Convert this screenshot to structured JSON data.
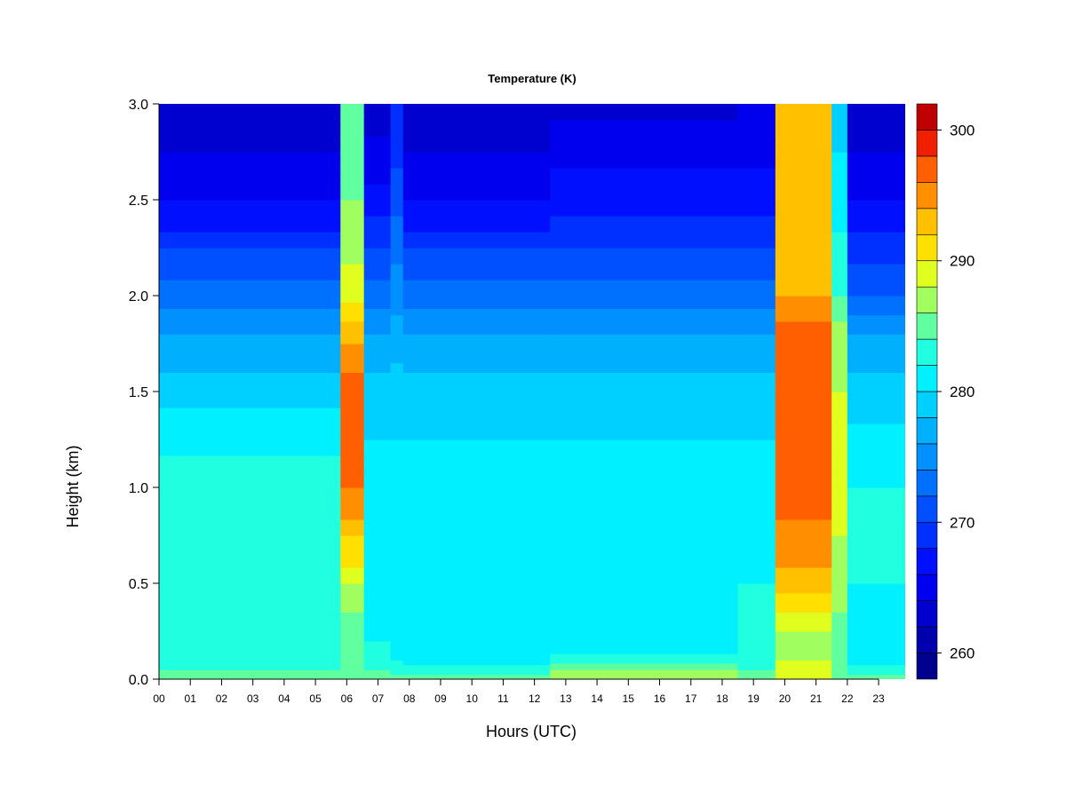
{
  "chart_data": {
    "type": "heatmap",
    "title": "Temperature (K)",
    "xlabel": "Hours (UTC)",
    "ylabel": "Height (km)",
    "xlim": [
      0,
      23.85
    ],
    "ylim": [
      0,
      3.0
    ],
    "x_ticks": [
      {
        "value": 0,
        "label": "00"
      },
      {
        "value": 1,
        "label": "01"
      },
      {
        "value": 2,
        "label": "02"
      },
      {
        "value": 3,
        "label": "03"
      },
      {
        "value": 4,
        "label": "04"
      },
      {
        "value": 5,
        "label": "05"
      },
      {
        "value": 6,
        "label": "06"
      },
      {
        "value": 7,
        "label": "07"
      },
      {
        "value": 8,
        "label": "08"
      },
      {
        "value": 9,
        "label": "09"
      },
      {
        "value": 10,
        "label": "10"
      },
      {
        "value": 11,
        "label": "11"
      },
      {
        "value": 12,
        "label": "12"
      },
      {
        "value": 13,
        "label": "13"
      },
      {
        "value": 14,
        "label": "14"
      },
      {
        "value": 15,
        "label": "15"
      },
      {
        "value": 16,
        "label": "16"
      },
      {
        "value": 17,
        "label": "17"
      },
      {
        "value": 18,
        "label": "18"
      },
      {
        "value": 19,
        "label": "19"
      },
      {
        "value": 20,
        "label": "20"
      },
      {
        "value": 21,
        "label": "21"
      },
      {
        "value": 22,
        "label": "22"
      },
      {
        "value": 23,
        "label": "23"
      }
    ],
    "y_ticks": [
      {
        "value": 0.0,
        "label": "0.0"
      },
      {
        "value": 0.5,
        "label": "0.5"
      },
      {
        "value": 1.0,
        "label": "1.0"
      },
      {
        "value": 1.5,
        "label": "1.5"
      },
      {
        "value": 2.0,
        "label": "2.0"
      },
      {
        "value": 2.5,
        "label": "2.5"
      },
      {
        "value": 3.0,
        "label": "3.0"
      }
    ],
    "colorbar": {
      "range": [
        258,
        302
      ],
      "ticks": [
        {
          "value": 260,
          "label": "260"
        },
        {
          "value": 270,
          "label": "270"
        },
        {
          "value": 280,
          "label": "280"
        },
        {
          "value": 290,
          "label": "290"
        },
        {
          "value": 300,
          "label": "300"
        }
      ],
      "levels": [
        258,
        260,
        262,
        264,
        266,
        268,
        270,
        272,
        274,
        276,
        278,
        280,
        282,
        284,
        286,
        288,
        290,
        292,
        294,
        296,
        298,
        300,
        302
      ],
      "colors": [
        "#00008F",
        "#0000AF",
        "#0000CF",
        "#0000EF",
        "#0010FF",
        "#0030FF",
        "#0050FF",
        "#0070FF",
        "#0090FF",
        "#00B0FF",
        "#00D0FF",
        "#00F0FF",
        "#20FFDF",
        "#60FF9F",
        "#A0FF5F",
        "#E0FF1F",
        "#FFE000",
        "#FFC000",
        "#FF8F00",
        "#FF5F00",
        "#EF1F00",
        "#BF0000",
        "#8F0000"
      ]
    },
    "grid": false,
    "z_profile": {
      "heights_km": [
        0.0,
        0.05,
        0.1,
        0.2,
        0.5,
        1.0,
        1.5,
        1.8,
        2.0,
        2.5,
        3.0
      ],
      "columns": [
        {
          "hours": [
            0.0,
            5.8
          ],
          "temps_K": [
            286,
            284,
            282,
            283,
            284,
            283,
            279,
            276,
            273,
            266,
            262
          ]
        },
        {
          "hours": [
            5.8,
            6.55
          ],
          "temps_K": [
            286,
            285,
            284,
            284,
            288,
            296,
            297,
            293,
            289,
            286,
            284
          ]
        },
        {
          "hours": [
            6.55,
            7.4
          ],
          "temps_K": [
            286,
            284,
            282,
            282,
            281,
            281,
            279,
            276,
            273,
            267,
            262
          ]
        },
        {
          "hours": [
            7.4,
            7.8
          ],
          "temps_K": [
            285,
            283,
            282,
            281,
            281,
            281,
            279,
            277,
            275,
            271,
            268
          ]
        },
        {
          "hours": [
            7.8,
            12.5
          ],
          "temps_K": [
            285,
            283,
            281,
            280,
            281,
            281,
            279,
            276,
            273,
            266,
            262
          ]
        },
        {
          "hours": [
            12.5,
            18.5
          ],
          "temps_K": [
            288,
            286,
            283,
            280,
            281,
            281,
            279,
            276,
            273,
            267,
            263
          ]
        },
        {
          "hours": [
            18.5,
            19.7
          ],
          "temps_K": [
            286,
            284,
            282,
            282,
            282,
            281,
            279,
            276,
            273,
            267,
            264
          ]
        },
        {
          "hours": [
            19.7,
            21.5
          ],
          "temps_K": [
            288,
            288,
            288,
            287,
            293,
            297,
            298,
            297,
            294,
            293,
            293
          ]
        },
        {
          "hours": [
            21.5,
            22.0
          ],
          "temps_K": [
            286,
            285,
            284,
            285,
            287,
            289,
            288,
            287,
            284,
            281,
            279
          ]
        },
        {
          "hours": [
            22.0,
            23.85
          ],
          "temps_K": [
            285,
            283,
            281,
            281,
            282,
            282,
            279,
            276,
            272,
            266,
            262
          ]
        }
      ]
    }
  }
}
